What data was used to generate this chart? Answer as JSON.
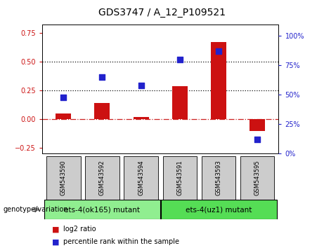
{
  "title": "GDS3747 / A_12_P109521",
  "categories": [
    "GSM543590",
    "GSM543592",
    "GSM543594",
    "GSM543591",
    "GSM543593",
    "GSM543595"
  ],
  "log2_ratio": [
    0.05,
    0.14,
    0.02,
    0.29,
    0.67,
    -0.1
  ],
  "percentile_rank": [
    48,
    65,
    58,
    80,
    87,
    12
  ],
  "bar_color": "#cc1111",
  "dot_color": "#2222cc",
  "left_ylim": [
    -0.3,
    0.82
  ],
  "right_ylim": [
    0,
    109.3
  ],
  "left_yticks": [
    -0.25,
    0.0,
    0.25,
    0.5,
    0.75
  ],
  "right_yticks": [
    0,
    25,
    50,
    75,
    100
  ],
  "hlines": [
    0.25,
    0.5
  ],
  "group1_label": "ets-4(ok165) mutant",
  "group2_label": "ets-4(uz1) mutant",
  "group1_color": "#90ee90",
  "group2_color": "#55dd55",
  "legend_log2": "log2 ratio",
  "legend_pct": "percentile rank within the sample",
  "left_label_color": "#cc1111",
  "right_label_color": "#2222cc",
  "zero_line_color": "#cc2222",
  "hline_color": "#111111",
  "bg_plot": "#ffffff",
  "bg_label_area": "#cccccc",
  "genotype_label": "genotype/variation"
}
